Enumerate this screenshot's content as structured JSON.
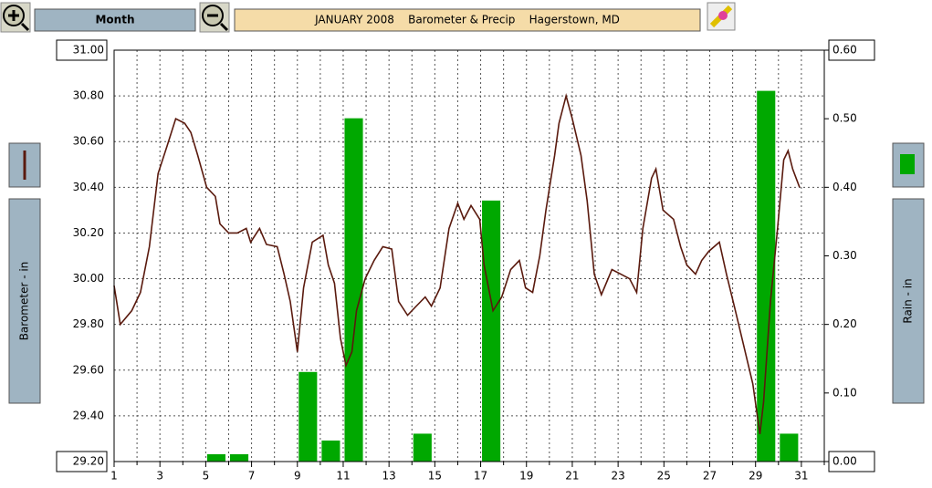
{
  "toolbar": {
    "period": "Month"
  },
  "chart_data": {
    "type": "line",
    "title": "JANUARY 2008    Barometer & Precip    Hagerstown, MD",
    "y_label": "Barometer - in",
    "y2_label": "Rain - in",
    "xlim": [
      1,
      32
    ],
    "xticks": [
      1,
      3,
      5,
      7,
      9,
      11,
      13,
      15,
      17,
      19,
      21,
      23,
      25,
      27,
      29,
      31
    ],
    "xminorticks": [
      2,
      4,
      6,
      8,
      10,
      12,
      14,
      16,
      18,
      20,
      22,
      24,
      26,
      28,
      30,
      32
    ],
    "ylim": [
      29.2,
      31.0
    ],
    "yticks": [
      {
        "value": 29.2,
        "label": "29.20"
      },
      {
        "value": 29.4,
        "label": "29.40"
      },
      {
        "value": 29.6,
        "label": "29.60"
      },
      {
        "value": 29.8,
        "label": "29.80"
      },
      {
        "value": 30.0,
        "label": "30.00"
      },
      {
        "value": 30.2,
        "label": "30.20"
      },
      {
        "value": 30.4,
        "label": "30.40"
      },
      {
        "value": 30.6,
        "label": "30.60"
      },
      {
        "value": 30.8,
        "label": "30.80"
      },
      {
        "value": 31.0,
        "label": "31.00"
      }
    ],
    "y2lim": [
      0,
      0.6
    ],
    "y2ticks": [
      {
        "value": 0,
        "label": "0.00"
      },
      {
        "value": 0.1,
        "label": "0.10"
      },
      {
        "value": 0.2,
        "label": "0.20"
      },
      {
        "value": 0.3,
        "label": "0.30"
      },
      {
        "value": 0.4,
        "label": "0.40"
      },
      {
        "value": 0.5,
        "label": "0.50"
      },
      {
        "value": 0.6,
        "label": "0.60"
      }
    ],
    "grid": true,
    "series": [
      {
        "type": "line",
        "color": "#5a1a0e",
        "x": [
          1.0,
          1.27,
          1.77,
          2.15,
          2.54,
          2.92,
          3.31,
          3.69,
          4.08,
          4.35,
          4.65,
          5.04,
          5.42,
          5.62,
          6.0,
          6.38,
          6.77,
          6.96,
          7.35,
          7.65,
          8.12,
          8.42,
          8.69,
          9.0,
          9.27,
          9.65,
          10.12,
          10.35,
          10.62,
          10.88,
          11.12,
          11.38,
          11.58,
          11.96,
          12.35,
          12.73,
          13.12,
          13.42,
          13.81,
          14.19,
          14.58,
          14.85,
          15.23,
          15.62,
          16.0,
          16.27,
          16.58,
          16.96,
          17.15,
          17.54,
          17.92,
          18.31,
          18.69,
          18.96,
          19.27,
          19.58,
          19.85,
          20.23,
          20.42,
          20.73,
          21.0,
          21.38,
          21.65,
          21.96,
          22.27,
          22.73,
          23.12,
          23.5,
          23.81,
          24.08,
          24.46,
          24.65,
          24.96,
          25.42,
          25.73,
          26.0,
          26.38,
          26.65,
          26.96,
          27.42,
          27.73,
          28.12,
          28.5,
          28.88,
          29.19,
          29.35,
          29.65,
          29.96,
          30.23,
          30.42,
          30.62,
          30.92
        ],
        "values": [
          29.97,
          29.8,
          29.86,
          29.94,
          30.14,
          30.46,
          30.58,
          30.7,
          30.68,
          30.64,
          30.54,
          30.4,
          30.36,
          30.24,
          30.2,
          30.2,
          30.22,
          30.16,
          30.22,
          30.15,
          30.14,
          30.02,
          29.9,
          29.68,
          29.96,
          30.16,
          30.19,
          30.06,
          29.98,
          29.74,
          29.62,
          29.68,
          29.86,
          30.0,
          30.08,
          30.14,
          30.13,
          29.9,
          29.84,
          29.88,
          29.92,
          29.88,
          29.96,
          30.22,
          30.33,
          30.26,
          30.32,
          30.26,
          30.06,
          29.86,
          29.92,
          30.04,
          30.08,
          29.96,
          29.94,
          30.1,
          30.3,
          30.54,
          30.68,
          30.8,
          30.7,
          30.54,
          30.34,
          30.02,
          29.93,
          30.04,
          30.02,
          30.0,
          29.94,
          30.22,
          30.44,
          30.48,
          30.3,
          30.26,
          30.14,
          30.06,
          30.02,
          30.08,
          30.12,
          30.16,
          30.02,
          29.86,
          29.7,
          29.54,
          29.32,
          29.46,
          29.9,
          30.22,
          30.52,
          30.56,
          30.48,
          30.4
        ]
      },
      {
        "type": "bar",
        "axis": "y2",
        "color": "#00a800",
        "x": [
          1,
          2,
          3,
          4,
          5,
          6,
          7,
          8,
          9,
          10,
          11,
          12,
          13,
          14,
          15,
          16,
          17,
          18,
          19,
          20,
          21,
          22,
          23,
          24,
          25,
          26,
          27,
          28,
          29,
          30,
          31
        ],
        "values": [
          0,
          0,
          0,
          0,
          0.01,
          0.01,
          0,
          0,
          0.13,
          0.03,
          0.5,
          0,
          0,
          0.04,
          0,
          0,
          0.38,
          0,
          0,
          0,
          0,
          0,
          0,
          0,
          0,
          0,
          0,
          0,
          0.54,
          0.04,
          0
        ]
      }
    ]
  }
}
